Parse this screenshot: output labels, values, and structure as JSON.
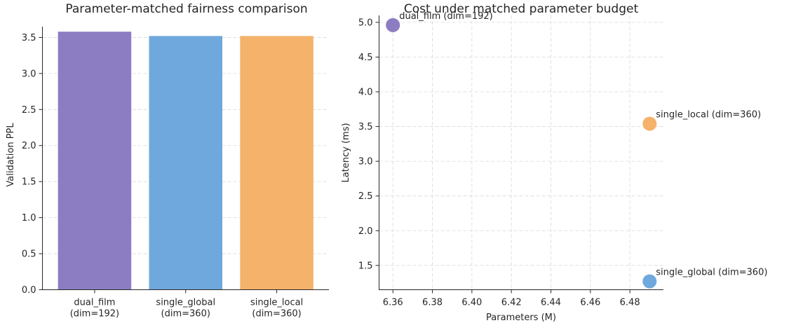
{
  "chart_data": [
    {
      "type": "bar",
      "title": "Parameter-matched fairness comparison",
      "xlabel": "",
      "ylabel": "Validation PPL",
      "categories": [
        "dual_film\n(dim=192)",
        "single_global\n(dim=360)",
        "single_local\n(dim=360)"
      ],
      "values": [
        3.58,
        3.52,
        3.52
      ],
      "colors": [
        "#8c7dc2",
        "#6fa8dc",
        "#f5b26b"
      ],
      "ylim": [
        0,
        3.65
      ],
      "yticks": [
        "0.0",
        "0.5",
        "1.0",
        "1.5",
        "2.0",
        "2.5",
        "3.0",
        "3.5"
      ],
      "grid": "y-dashed"
    },
    {
      "type": "scatter",
      "title": "Cost under matched parameter budget",
      "xlabel": "Parameters (M)",
      "ylabel": "Latency (ms)",
      "points": [
        {
          "label": "dual_film (dim=192)",
          "x": 6.36,
          "y": 4.96,
          "color": "#8c7dc2"
        },
        {
          "label": "single_local (dim=360)",
          "x": 6.49,
          "y": 3.54,
          "color": "#f5b26b"
        },
        {
          "label": "single_global (dim=360)",
          "x": 6.49,
          "y": 1.27,
          "color": "#6fa8dc"
        }
      ],
      "xlim": [
        6.353,
        6.497
      ],
      "ylim": [
        1.15,
        5.1
      ],
      "xticks": [
        "6.36",
        "6.38",
        "6.40",
        "6.42",
        "6.44",
        "6.46",
        "6.48"
      ],
      "yticks": [
        "1.5",
        "2.0",
        "2.5",
        "3.0",
        "3.5",
        "4.0",
        "4.5",
        "5.0"
      ],
      "grid": "both-dashed"
    }
  ]
}
